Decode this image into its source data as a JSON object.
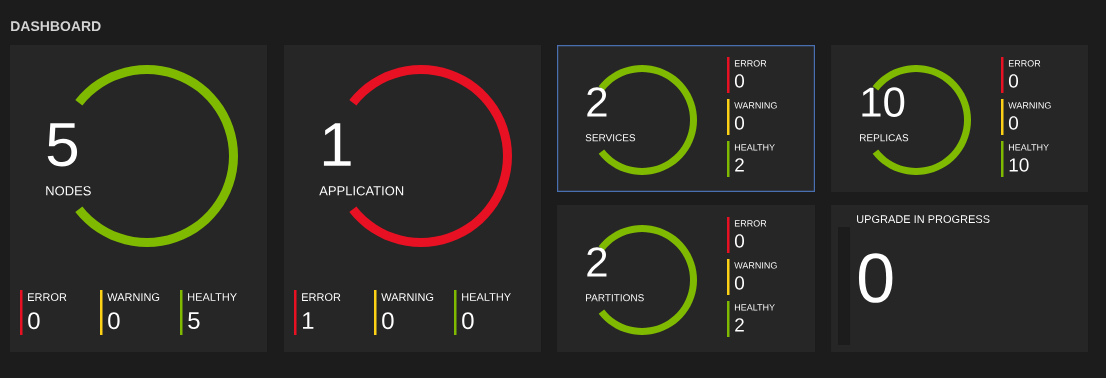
{
  "chart_data": [
    {
      "type": "other",
      "title": "DASHBOARD"
    },
    {
      "type": "pie",
      "title": "NODES",
      "annotations": [
        "5"
      ],
      "categories": [
        "ERROR",
        "WARNING",
        "HEALTHY"
      ],
      "values": [
        0,
        0,
        5
      ],
      "colors": [
        "#e81123",
        "#fcd116",
        "#7fba00"
      ],
      "value_labels": [
        "0",
        "0",
        "5"
      ]
    },
    {
      "type": "pie",
      "title": "APPLICATION",
      "annotations": [
        "1"
      ],
      "categories": [
        "ERROR",
        "WARNING",
        "HEALTHY"
      ],
      "values": [
        1,
        0,
        0
      ],
      "colors": [
        "#e81123",
        "#fcd116",
        "#7fba00"
      ],
      "value_labels": [
        "1",
        "0",
        "0"
      ]
    },
    {
      "type": "pie",
      "title": "SERVICES",
      "annotations": [
        "2"
      ],
      "categories": [
        "ERROR",
        "WARNING",
        "HEALTHY"
      ],
      "values": [
        0,
        0,
        2
      ],
      "colors": [
        "#e81123",
        "#fcd116",
        "#7fba00"
      ],
      "value_labels": [
        "0",
        "0",
        "2"
      ]
    },
    {
      "type": "pie",
      "title": "REPLICAS",
      "annotations": [
        "10"
      ],
      "categories": [
        "ERROR",
        "WARNING",
        "HEALTHY"
      ],
      "values": [
        0,
        0,
        10
      ],
      "colors": [
        "#e81123",
        "#fcd116",
        "#7fba00"
      ],
      "value_labels": [
        "0",
        "0",
        "10"
      ]
    },
    {
      "type": "pie",
      "title": "PARTITIONS",
      "annotations": [
        "2"
      ],
      "categories": [
        "ERROR",
        "WARNING",
        "HEALTHY"
      ],
      "values": [
        0,
        0,
        2
      ],
      "colors": [
        "#e81123",
        "#fcd116",
        "#7fba00"
      ],
      "value_labels": [
        "0",
        "0",
        "2"
      ]
    },
    {
      "type": "other",
      "title": "UPGRADE IN PROGRESS",
      "annotations": [
        "0"
      ]
    }
  ]
}
